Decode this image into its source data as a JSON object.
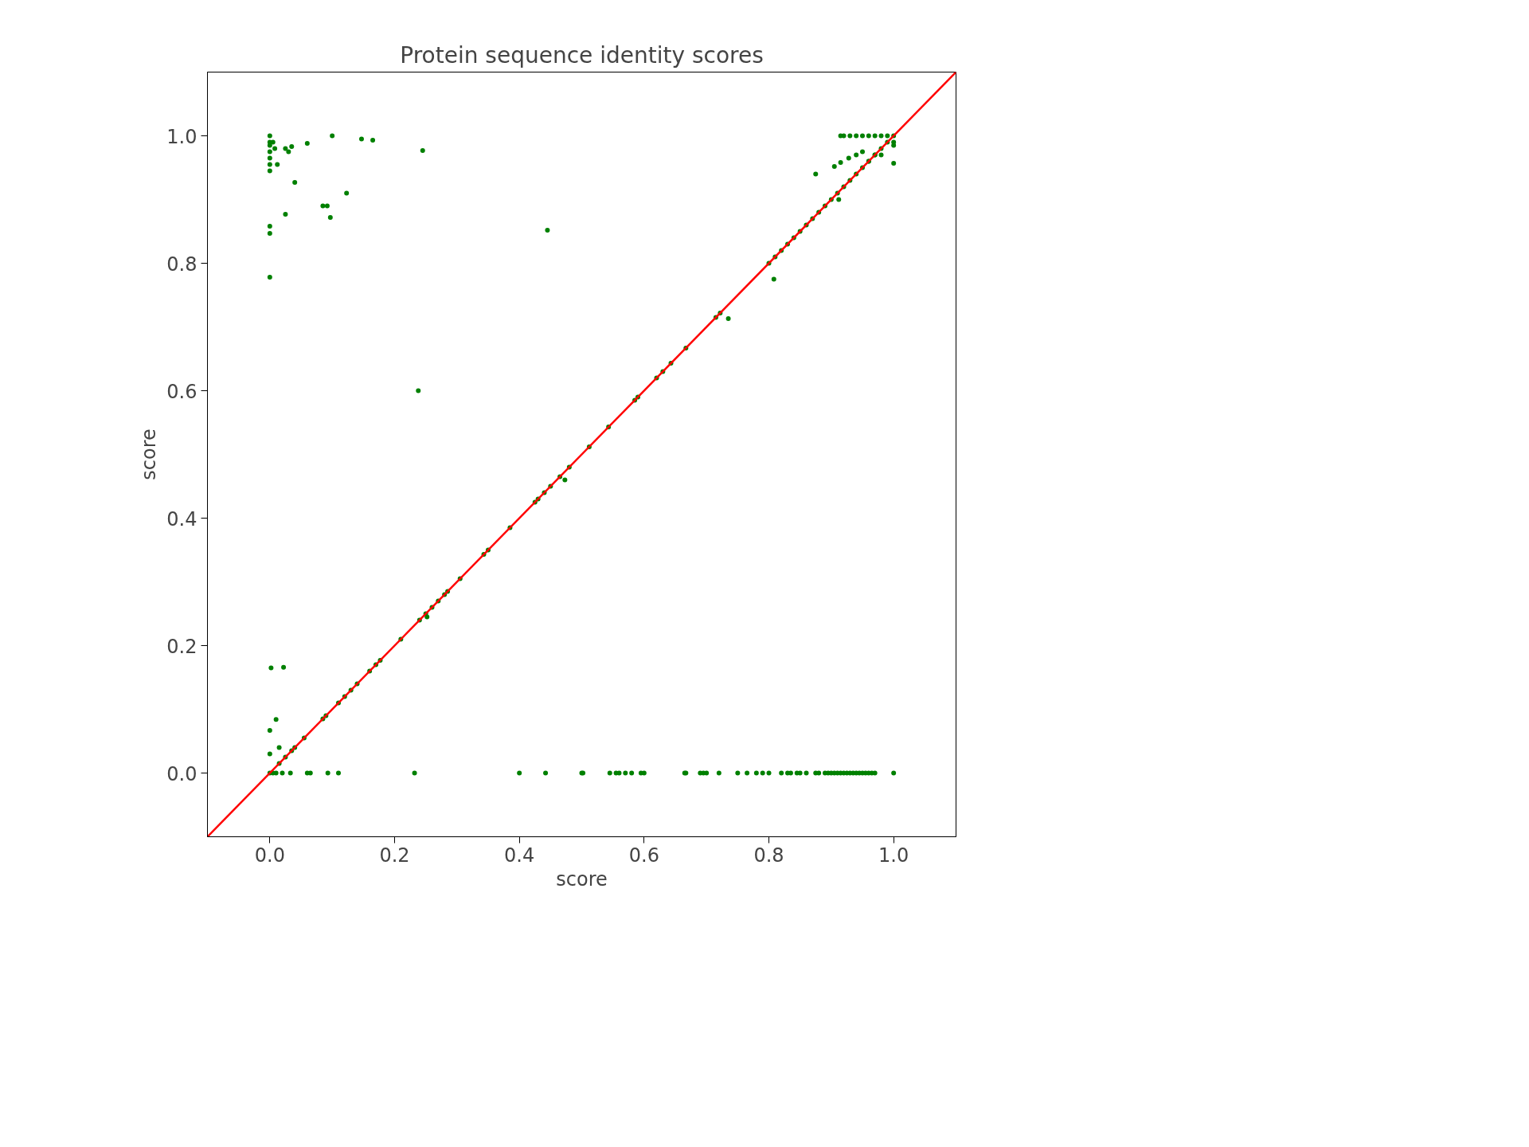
{
  "chart_data": {
    "type": "scatter",
    "title": "Protein sequence identity scores",
    "xlabel": "score",
    "ylabel": "score",
    "xlim": [
      -0.1,
      1.1
    ],
    "ylim": [
      -0.1,
      1.1
    ],
    "xticks": [
      {
        "value": 0,
        "label": "0.0"
      },
      {
        "value": 0.2,
        "label": "0.2"
      },
      {
        "value": 0.4,
        "label": "0.4"
      },
      {
        "value": 0.6,
        "label": "0.6"
      },
      {
        "value": 0.8,
        "label": "0.8"
      },
      {
        "value": 1,
        "label": "1.0"
      }
    ],
    "yticks": [
      {
        "value": 0,
        "label": "0.0"
      },
      {
        "value": 0.2,
        "label": "0.2"
      },
      {
        "value": 0.4,
        "label": "0.4"
      },
      {
        "value": 0.6,
        "label": "0.6"
      },
      {
        "value": 0.8,
        "label": "0.8"
      },
      {
        "value": 1,
        "label": "1.0"
      }
    ],
    "grid": false,
    "series": [
      {
        "marker": "circle",
        "color": "#008000",
        "x": [
          0,
          0,
          0,
          0,
          0,
          0,
          0,
          0.005,
          0.008,
          0.012,
          0.025,
          0.03,
          0.035,
          0.06,
          0.1,
          0.147,
          0.165,
          0.245,
          0.04,
          0.025,
          0.085,
          0.092,
          0.097,
          0.123,
          0,
          0,
          0,
          0.445,
          0.238,
          0.002,
          0.022,
          0.01,
          0,
          0.015,
          0,
          0,
          0.005,
          0.01,
          0.02,
          0.033,
          0.06,
          0.065,
          0.093,
          0.11,
          0.232,
          0.4,
          0.442,
          0.5,
          0.502,
          0.545,
          0.555,
          0.56,
          0.57,
          0.58,
          0.595,
          0.6,
          0.665,
          0.667,
          0.69,
          0.695,
          0.7,
          0.72,
          0.75,
          0.765,
          0.78,
          0.79,
          0.8,
          0.82,
          0.83,
          0.835,
          0.845,
          0.85,
          0.86,
          0.875,
          0.88,
          0.89,
          0.895,
          0.9,
          0.905,
          0.91,
          0.915,
          0.92,
          0.925,
          0.93,
          0.935,
          0.94,
          0.945,
          0.95,
          0.955,
          0.96,
          0.965,
          0.97,
          1.0,
          0.015,
          0.025,
          0.035,
          0.04,
          0.055,
          0.085,
          0.09,
          0.11,
          0.12,
          0.13,
          0.14,
          0.16,
          0.17,
          0.177,
          0.21,
          0.24,
          0.25,
          0.26,
          0.27,
          0.28,
          0.285,
          0.305,
          0.343,
          0.35,
          0.385,
          0.425,
          0.43,
          0.44,
          0.45,
          0.465,
          0.48,
          0.512,
          0.543,
          0.585,
          0.59,
          0.62,
          0.63,
          0.643,
          0.667,
          0.715,
          0.722,
          0.8,
          0.81,
          0.82,
          0.83,
          0.84,
          0.85,
          0.86,
          0.87,
          0.88,
          0.89,
          0.9,
          0.91,
          0.92,
          0.93,
          0.94,
          0.95,
          0.96,
          0.97,
          0.98,
          0.99,
          1.0,
          0.252,
          0.473,
          0.735,
          0.808,
          0.875,
          0.905,
          0.915,
          0.928,
          0.94,
          0.95,
          0.96,
          0.97,
          0.98,
          1.0,
          0.912,
          0.915,
          0.92,
          0.93,
          0.94,
          0.95,
          0.96,
          0.97,
          0.98,
          0.99,
          1.0,
          1.0
        ],
        "values": [
          1.0,
          0.99,
          0.985,
          0.975,
          0.965,
          0.955,
          0.945,
          0.99,
          0.98,
          0.955,
          0.98,
          0.975,
          0.983,
          0.988,
          1.0,
          0.995,
          0.993,
          0.977,
          0.927,
          0.877,
          0.89,
          0.89,
          0.872,
          0.91,
          0.858,
          0.847,
          0.778,
          0.852,
          0.6,
          0.165,
          0.166,
          0.084,
          0.067,
          0.04,
          0.03,
          0,
          0,
          0,
          0,
          0,
          0,
          0,
          0,
          0,
          0,
          0,
          0,
          0,
          0,
          0,
          0,
          0,
          0,
          0,
          0,
          0,
          0,
          0,
          0,
          0,
          0,
          0,
          0,
          0,
          0,
          0,
          0,
          0,
          0,
          0,
          0,
          0,
          0,
          0,
          0,
          0,
          0,
          0,
          0,
          0,
          0,
          0,
          0,
          0,
          0,
          0,
          0,
          0,
          0,
          0,
          0,
          0,
          0,
          0.015,
          0.025,
          0.035,
          0.04,
          0.055,
          0.085,
          0.09,
          0.11,
          0.12,
          0.13,
          0.14,
          0.16,
          0.17,
          0.177,
          0.21,
          0.24,
          0.25,
          0.26,
          0.27,
          0.28,
          0.285,
          0.305,
          0.343,
          0.35,
          0.385,
          0.425,
          0.43,
          0.44,
          0.45,
          0.465,
          0.48,
          0.512,
          0.543,
          0.585,
          0.59,
          0.62,
          0.63,
          0.643,
          0.667,
          0.715,
          0.722,
          0.8,
          0.81,
          0.82,
          0.83,
          0.84,
          0.85,
          0.86,
          0.87,
          0.88,
          0.89,
          0.9,
          0.91,
          0.92,
          0.93,
          0.94,
          0.95,
          0.96,
          0.97,
          0.98,
          0.99,
          1.0,
          0.245,
          0.46,
          0.713,
          0.775,
          0.94,
          0.952,
          0.958,
          0.965,
          0.97,
          0.975,
          0.96,
          0.97,
          0.97,
          0.957,
          0.9,
          1.0,
          1.0,
          1.0,
          1.0,
          1.0,
          1.0,
          1.0,
          1.0,
          1.0,
          0.99,
          0.985
        ]
      },
      {
        "type": "line",
        "color": "#ff0000",
        "x": [
          -0.1,
          1.1
        ],
        "values": [
          -0.1,
          1.1
        ]
      }
    ]
  }
}
